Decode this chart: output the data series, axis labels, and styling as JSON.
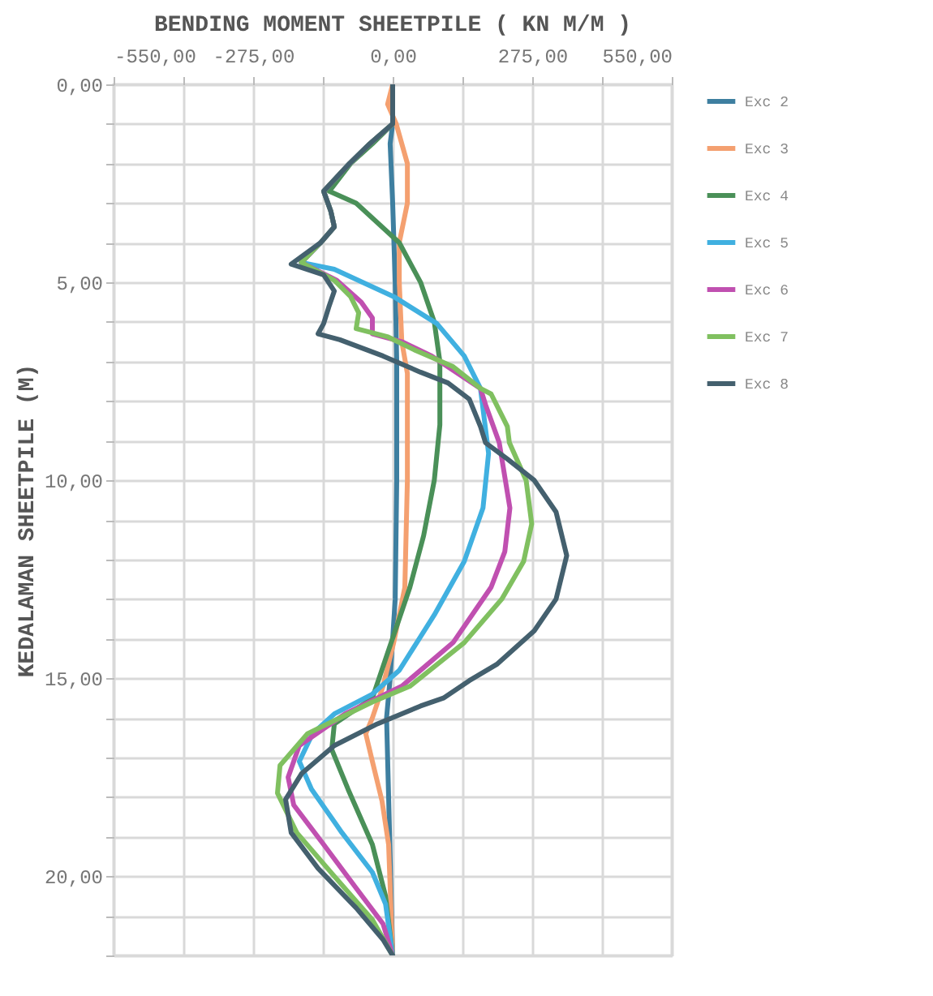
{
  "chart_data": {
    "type": "line",
    "title": "BENDING MOMENT SHEETPILE ( KN M/M )",
    "ylabel": "KEDALAMAN SHEETPILE (M)",
    "xlim": [
      -550,
      550
    ],
    "xticks": [
      {
        "value": -550,
        "label": "-550,00"
      },
      {
        "value": -412.5,
        "label": null
      },
      {
        "value": -275,
        "label": "-275,00"
      },
      {
        "value": -137.5,
        "label": null
      },
      {
        "value": 0,
        "label": "0,00"
      },
      {
        "value": 137.5,
        "label": null
      },
      {
        "value": 275,
        "label": "275,00"
      },
      {
        "value": 412.5,
        "label": null
      },
      {
        "value": 550,
        "label": "550,00"
      }
    ],
    "ylim": [
      22,
      0
    ],
    "yticks": [
      {
        "value": 0,
        "label": "0,00"
      },
      {
        "value": 1,
        "label": null
      },
      {
        "value": 2,
        "label": null
      },
      {
        "value": 3,
        "label": null
      },
      {
        "value": 4,
        "label": null
      },
      {
        "value": 5,
        "label": "5,00"
      },
      {
        "value": 6,
        "label": null
      },
      {
        "value": 7,
        "label": null
      },
      {
        "value": 8,
        "label": null
      },
      {
        "value": 9,
        "label": null
      },
      {
        "value": 10,
        "label": "10,00"
      },
      {
        "value": 11,
        "label": null
      },
      {
        "value": 12,
        "label": null
      },
      {
        "value": 13,
        "label": null
      },
      {
        "value": 14,
        "label": null
      },
      {
        "value": 15,
        "label": "15,00"
      },
      {
        "value": 16,
        "label": null
      },
      {
        "value": 17,
        "label": null
      },
      {
        "value": 18,
        "label": null
      },
      {
        "value": 19,
        "label": null
      },
      {
        "value": 20,
        "label": "20,00"
      },
      {
        "value": 21,
        "label": null
      },
      {
        "value": 22,
        "label": null
      }
    ],
    "grid": true,
    "legend": "right",
    "marker": "none",
    "line_style": "solid",
    "series": [
      {
        "name": "Exc 2",
        "color": "#3e7fa0",
        "x": [
          0,
          0,
          -5,
          0,
          5,
          8,
          8,
          5,
          -5,
          -12,
          -8,
          -4,
          0
        ],
        "values": [
          0,
          1,
          1.5,
          3,
          5,
          7,
          10,
          13,
          15,
          16,
          18,
          20,
          22
        ]
      },
      {
        "name": "Exc 3",
        "color": "#f4a070",
        "x": [
          0,
          -10,
          7,
          29,
          29,
          13,
          13,
          18,
          29,
          29,
          24,
          2,
          -19,
          -40,
          -53,
          -40,
          -21,
          -8,
          0
        ],
        "values": [
          0,
          0.5,
          1,
          2,
          3,
          4,
          5,
          6.5,
          7.3,
          10,
          12.7,
          14.1,
          15.2,
          16,
          16.4,
          17.1,
          18.1,
          19.2,
          22
        ]
      },
      {
        "name": "Exc 4",
        "color": "#4a9058",
        "x": [
          0,
          0,
          -40,
          -83,
          -125,
          -72,
          13,
          55,
          82,
          93,
          93,
          82,
          61,
          34,
          -3,
          -40,
          -115,
          -120,
          -88,
          -40,
          -14,
          0
        ],
        "values": [
          0,
          1,
          1.5,
          2,
          2.7,
          3,
          4,
          5,
          6,
          7,
          8.6,
          10,
          11.4,
          12.7,
          14.1,
          15.5,
          16.15,
          16.8,
          17.8,
          19.2,
          20.5,
          22
        ]
      },
      {
        "name": "Exc 5",
        "color": "#40b0e0",
        "x": [
          0,
          0,
          -45,
          -85,
          -136,
          -122,
          -115,
          -142,
          -180,
          -115,
          2,
          87,
          141,
          173,
          189,
          178,
          141,
          82,
          13,
          -40,
          -115,
          -158,
          -184,
          -160,
          -100,
          -40,
          -14,
          0
        ],
        "values": [
          0,
          1,
          1.5,
          2,
          2.7,
          3.2,
          3.6,
          4,
          4.5,
          4.67,
          5.36,
          6.04,
          6.86,
          7.68,
          9.32,
          10.7,
          12.05,
          13.4,
          14.8,
          15.4,
          15.9,
          16.4,
          17.1,
          17.8,
          18.9,
          19.9,
          20.7,
          22
        ]
      },
      {
        "name": "Exc 6",
        "color": "#c050b0",
        "x": [
          0,
          0,
          -45,
          -85,
          -136,
          -122,
          -115,
          -142,
          -180,
          -110,
          -62,
          -40,
          -40,
          18,
          77,
          173,
          183,
          210,
          231,
          221,
          194,
          119,
          18,
          -94,
          -184,
          -206,
          -195,
          -136,
          -72,
          -19,
          0
        ],
        "values": [
          0,
          1,
          1.5,
          2,
          2.7,
          3.2,
          3.6,
          4,
          4.5,
          4.95,
          5.5,
          5.9,
          6.3,
          6.5,
          6.86,
          7.68,
          8.09,
          9.05,
          10.7,
          11.8,
          12.7,
          14.1,
          15.2,
          15.9,
          16.7,
          17.5,
          18.2,
          19.2,
          20.3,
          21.2,
          22
        ]
      },
      {
        "name": "Exc 7",
        "color": "#80c060",
        "x": [
          0,
          0,
          -45,
          -85,
          -136,
          -122,
          -115,
          -142,
          -180,
          -115,
          -83,
          -67,
          -72,
          -9,
          45,
          119,
          173,
          194,
          226,
          230,
          263,
          274,
          258,
          215,
          141,
          34,
          -40,
          -168,
          -222,
          -227,
          -189,
          -115,
          -40,
          0
        ],
        "values": [
          0,
          1,
          1.5,
          2,
          2.7,
          3.2,
          3.6,
          4,
          4.5,
          4.95,
          5.36,
          5.77,
          6.17,
          6.38,
          6.72,
          7.13,
          7.68,
          7.82,
          8.64,
          9.05,
          10,
          11.1,
          12.05,
          13,
          14.1,
          15.2,
          15.6,
          16.4,
          17.2,
          17.9,
          18.9,
          20,
          21.1,
          22
        ]
      },
      {
        "name": "Exc 8",
        "color": "#44606e",
        "x": [
          0,
          0,
          -45,
          -85,
          -136,
          -122,
          -115,
          -142,
          -200,
          -136,
          -115,
          -126,
          -136,
          -147,
          -104,
          -19,
          55,
          109,
          151,
          173,
          183,
          226,
          279,
          322,
          343,
          322,
          279,
          205,
          151,
          100,
          55,
          -30,
          -115,
          -179,
          -211,
          -200,
          -147,
          -72,
          -19,
          0
        ],
        "values": [
          0,
          1,
          1.5,
          2,
          2.7,
          3.2,
          3.6,
          4,
          4.54,
          4.81,
          5.22,
          5.63,
          6.04,
          6.3,
          6.45,
          6.86,
          7.27,
          7.54,
          7.95,
          8.64,
          9.05,
          9.46,
          10,
          10.8,
          11.9,
          13,
          13.8,
          14.65,
          15.06,
          15.5,
          15.7,
          16.15,
          16.7,
          17.4,
          18.06,
          18.9,
          19.8,
          20.8,
          21.6,
          22
        ]
      }
    ]
  }
}
